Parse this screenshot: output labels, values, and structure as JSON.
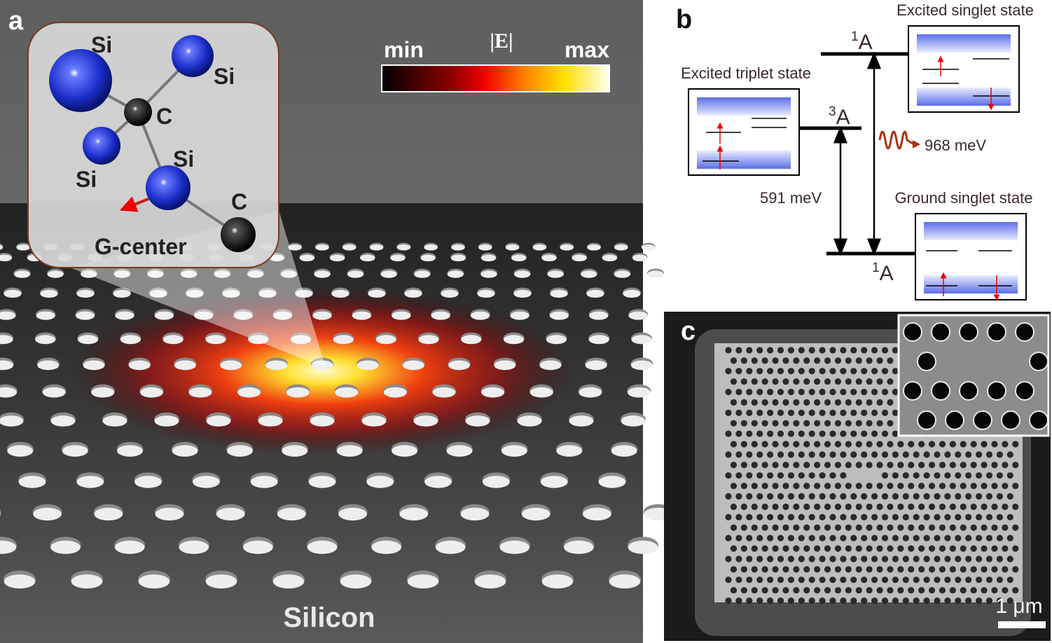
{
  "panel_a": {
    "label": "a",
    "atoms": [
      "Si",
      "Si",
      "Si",
      "Si",
      "C",
      "C"
    ],
    "defect": "G-center",
    "colorbar": {
      "min": "min",
      "quantity": "|E|",
      "max": "max"
    },
    "material": "Silicon"
  },
  "panel_b": {
    "label": "b",
    "states": [
      {
        "name": "Excited singlet state",
        "level_sup": "1",
        "level": "A"
      },
      {
        "name": "Excited triplet state",
        "level_sup": "3",
        "level": "A"
      },
      {
        "name": "Ground singlet state",
        "level_sup": "1",
        "level": "A"
      }
    ],
    "transitions": [
      "968 meV",
      "591 meV"
    ]
  },
  "panel_c": {
    "label": "c",
    "scale_bar": "1 μm"
  }
}
